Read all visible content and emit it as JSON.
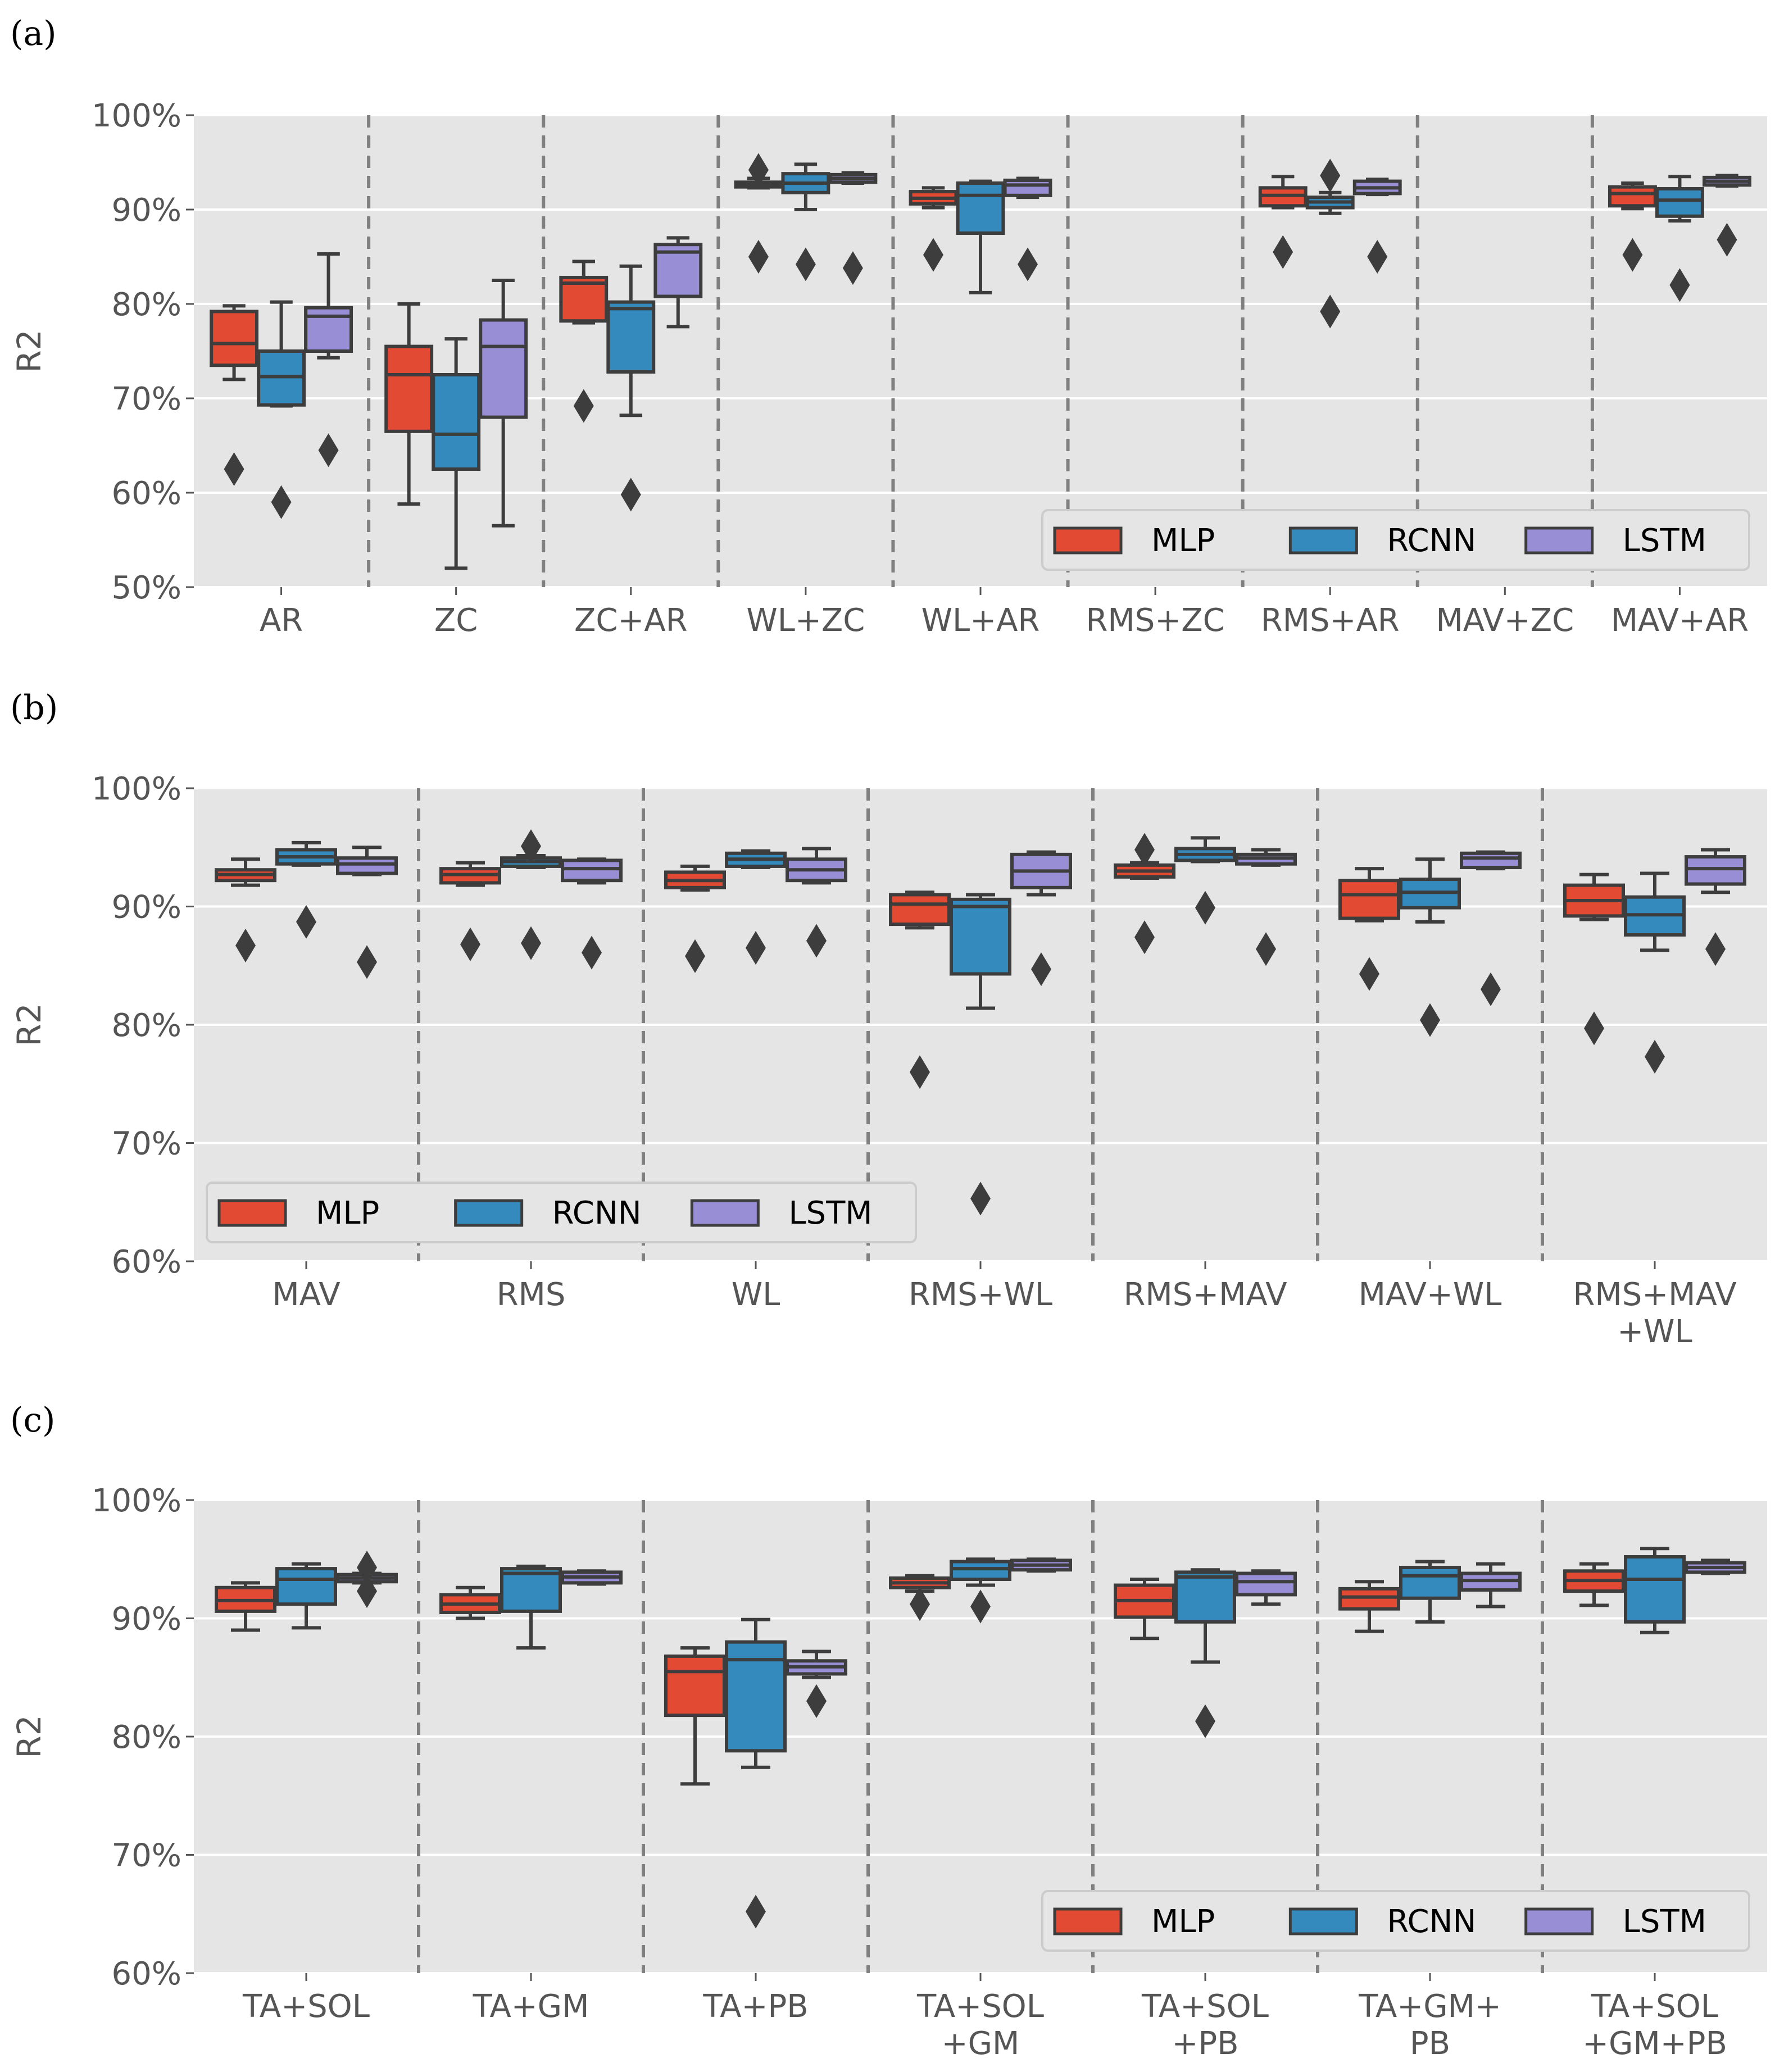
{
  "figure": {
    "colors": {
      "MLP": "#E24A33",
      "RCNN": "#348ABD",
      "LSTM": "#988ED5",
      "panel_bg": "#E5E5E5",
      "grid": "#FFFFFF",
      "box_edge": "#3d3d3d",
      "divider": "#808080"
    }
  },
  "chart_data": [
    {
      "type": "box",
      "panel_label": "(a)",
      "ylabel": "R2",
      "ylim": [
        50,
        100
      ],
      "yticks": [
        50,
        60,
        70,
        80,
        90,
        100
      ],
      "ytick_labels": [
        "50%",
        "60%",
        "70%",
        "80%",
        "90%",
        "100%"
      ],
      "legend": {
        "position": "lower-right",
        "entries": [
          "MLP",
          "RCNN",
          "LSTM"
        ]
      },
      "categories": [
        "AR",
        "ZC",
        "ZC+AR",
        "WL+ZC",
        "WL+AR",
        "RMS+ZC",
        "RMS+AR",
        "MAV+ZC",
        "MAV+AR"
      ],
      "series": [
        {
          "name": "MLP",
          "boxes": [
            {
              "wl": 72.0,
              "q1": 73.5,
              "med": 75.8,
              "q3": 79.2,
              "wh": 79.8,
              "fliers": [
                62.5
              ]
            },
            {
              "wl": 58.8,
              "q1": 66.5,
              "med": 72.5,
              "q3": 75.5,
              "wh": 80.0,
              "fliers": []
            },
            {
              "wl": 78.0,
              "q1": 78.2,
              "med": 82.2,
              "q3": 82.8,
              "wh": 84.5,
              "fliers": [
                69.2
              ]
            },
            {
              "wl": 92.3,
              "q1": 92.4,
              "med": 92.6,
              "q3": 92.9,
              "wh": 93.3,
              "fliers": [
                94.2,
                85.0
              ]
            },
            {
              "wl": 90.2,
              "q1": 90.6,
              "med": 91.2,
              "q3": 91.9,
              "wh": 92.3,
              "fliers": [
                85.2
              ]
            },
            null,
            {
              "wl": 90.2,
              "q1": 90.4,
              "med": 91.5,
              "q3": 92.3,
              "wh": 93.5,
              "fliers": [
                85.5
              ]
            },
            null,
            {
              "wl": 90.1,
              "q1": 90.4,
              "med": 91.7,
              "q3": 92.4,
              "wh": 92.8,
              "fliers": [
                85.2
              ]
            }
          ]
        },
        {
          "name": "RCNN",
          "boxes": [
            {
              "wl": 69.2,
              "q1": 69.3,
              "med": 72.3,
              "q3": 75.0,
              "wh": 80.2,
              "fliers": [
                59.0
              ]
            },
            {
              "wl": 52.0,
              "q1": 62.5,
              "med": 66.2,
              "q3": 72.5,
              "wh": 76.3,
              "fliers": []
            },
            {
              "wl": 68.2,
              "q1": 72.8,
              "med": 79.5,
              "q3": 80.2,
              "wh": 84.0,
              "fliers": [
                59.8
              ]
            },
            {
              "wl": 90.0,
              "q1": 91.8,
              "med": 92.8,
              "q3": 93.8,
              "wh": 94.8,
              "fliers": [
                84.2
              ]
            },
            {
              "wl": 81.2,
              "q1": 87.5,
              "med": 91.5,
              "q3": 92.8,
              "wh": 93.0,
              "fliers": []
            },
            null,
            {
              "wl": 89.6,
              "q1": 90.2,
              "med": 90.8,
              "q3": 91.3,
              "wh": 91.8,
              "fliers": [
                93.6,
                79.2
              ]
            },
            null,
            {
              "wl": 88.8,
              "q1": 89.3,
              "med": 91.0,
              "q3": 92.2,
              "wh": 93.5,
              "fliers": [
                82.0
              ]
            }
          ]
        },
        {
          "name": "LSTM",
          "boxes": [
            {
              "wl": 74.3,
              "q1": 75.0,
              "med": 78.7,
              "q3": 79.6,
              "wh": 85.3,
              "fliers": [
                64.5
              ]
            },
            {
              "wl": 56.5,
              "q1": 68.0,
              "med": 75.5,
              "q3": 78.3,
              "wh": 82.5,
              "fliers": []
            },
            {
              "wl": 77.6,
              "q1": 80.8,
              "med": 85.5,
              "q3": 86.3,
              "wh": 87.0,
              "fliers": []
            },
            {
              "wl": 92.8,
              "q1": 92.9,
              "med": 93.3,
              "q3": 93.7,
              "wh": 93.9,
              "fliers": [
                83.8
              ]
            },
            {
              "wl": 91.3,
              "q1": 91.5,
              "med": 92.6,
              "q3": 93.1,
              "wh": 93.3,
              "fliers": [
                84.2
              ]
            },
            null,
            {
              "wl": 91.6,
              "q1": 91.7,
              "med": 92.3,
              "q3": 93.0,
              "wh": 93.2,
              "fliers": [
                85.0
              ]
            },
            null,
            {
              "wl": 92.5,
              "q1": 92.6,
              "med": 93.0,
              "q3": 93.4,
              "wh": 93.6,
              "fliers": [
                86.8
              ]
            }
          ]
        }
      ]
    },
    {
      "type": "box",
      "panel_label": "(b)",
      "ylabel": "R2",
      "ylim": [
        60,
        100
      ],
      "yticks": [
        60,
        70,
        80,
        90,
        100
      ],
      "ytick_labels": [
        "60%",
        "70%",
        "80%",
        "90%",
        "100%"
      ],
      "legend": {
        "position": "lower-left",
        "entries": [
          "MLP",
          "RCNN",
          "LSTM"
        ]
      },
      "categories": [
        "MAV",
        "RMS",
        "WL",
        "RMS+WL",
        "RMS+MAV",
        "MAV+WL",
        "RMS+MAV\n+WL"
      ],
      "series": [
        {
          "name": "MLP",
          "boxes": [
            {
              "wl": 91.8,
              "q1": 92.2,
              "med": 92.7,
              "q3": 93.1,
              "wh": 94.0,
              "fliers": [
                86.7
              ]
            },
            {
              "wl": 91.8,
              "q1": 92.0,
              "med": 92.7,
              "q3": 93.2,
              "wh": 93.7,
              "fliers": [
                86.8
              ]
            },
            {
              "wl": 91.4,
              "q1": 91.6,
              "med": 92.2,
              "q3": 92.9,
              "wh": 93.4,
              "fliers": [
                85.8
              ]
            },
            {
              "wl": 88.2,
              "q1": 88.5,
              "med": 90.2,
              "q3": 91.0,
              "wh": 91.2,
              "fliers": [
                76.0
              ]
            },
            {
              "wl": 92.4,
              "q1": 92.5,
              "med": 93.0,
              "q3": 93.5,
              "wh": 93.7,
              "fliers": [
                94.8,
                87.4
              ]
            },
            {
              "wl": 88.8,
              "q1": 89.0,
              "med": 91.0,
              "q3": 92.2,
              "wh": 93.2,
              "fliers": [
                84.3
              ]
            },
            {
              "wl": 88.9,
              "q1": 89.2,
              "med": 90.5,
              "q3": 91.8,
              "wh": 92.7,
              "fliers": [
                79.7
              ]
            }
          ]
        },
        {
          "name": "RCNN",
          "boxes": [
            {
              "wl": 93.5,
              "q1": 93.6,
              "med": 94.2,
              "q3": 94.8,
              "wh": 95.4,
              "fliers": [
                88.7
              ]
            },
            {
              "wl": 93.3,
              "q1": 93.4,
              "med": 93.8,
              "q3": 94.1,
              "wh": 94.3,
              "fliers": [
                95.1,
                86.9
              ]
            },
            {
              "wl": 93.3,
              "q1": 93.4,
              "med": 94.0,
              "q3": 94.5,
              "wh": 94.7,
              "fliers": [
                86.5
              ]
            },
            {
              "wl": 81.4,
              "q1": 84.3,
              "med": 90.0,
              "q3": 90.6,
              "wh": 91.0,
              "fliers": [
                65.3
              ]
            },
            {
              "wl": 93.8,
              "q1": 93.9,
              "med": 94.4,
              "q3": 94.9,
              "wh": 95.8,
              "fliers": [
                89.9
              ]
            },
            {
              "wl": 88.7,
              "q1": 89.9,
              "med": 91.2,
              "q3": 92.3,
              "wh": 94.0,
              "fliers": [
                80.4
              ]
            },
            {
              "wl": 86.3,
              "q1": 87.6,
              "med": 89.3,
              "q3": 90.8,
              "wh": 92.8,
              "fliers": [
                77.3
              ]
            }
          ]
        },
        {
          "name": "LSTM",
          "boxes": [
            {
              "wl": 92.7,
              "q1": 92.8,
              "med": 93.6,
              "q3": 94.1,
              "wh": 95.0,
              "fliers": [
                85.3
              ]
            },
            {
              "wl": 92.0,
              "q1": 92.2,
              "med": 93.2,
              "q3": 93.9,
              "wh": 94.0,
              "fliers": [
                86.1
              ]
            },
            {
              "wl": 92.0,
              "q1": 92.2,
              "med": 93.1,
              "q3": 94.0,
              "wh": 94.9,
              "fliers": [
                87.1
              ]
            },
            {
              "wl": 91.0,
              "q1": 91.6,
              "med": 93.0,
              "q3": 94.4,
              "wh": 94.6,
              "fliers": [
                84.7
              ]
            },
            {
              "wl": 93.5,
              "q1": 93.6,
              "med": 94.1,
              "q3": 94.4,
              "wh": 94.8,
              "fliers": [
                86.4
              ]
            },
            {
              "wl": 93.2,
              "q1": 93.3,
              "med": 94.1,
              "q3": 94.5,
              "wh": 94.6,
              "fliers": [
                83.0
              ]
            },
            {
              "wl": 91.2,
              "q1": 91.9,
              "med": 93.2,
              "q3": 94.2,
              "wh": 94.8,
              "fliers": [
                86.4
              ]
            }
          ]
        }
      ]
    },
    {
      "type": "box",
      "panel_label": "(c)",
      "ylabel": "R2",
      "ylim": [
        60,
        100
      ],
      "yticks": [
        60,
        70,
        80,
        90,
        100
      ],
      "ytick_labels": [
        "60%",
        "70%",
        "80%",
        "90%",
        "100%"
      ],
      "legend": {
        "position": "lower-right",
        "entries": [
          "MLP",
          "RCNN",
          "LSTM"
        ]
      },
      "categories": [
        "TA+SOL",
        "TA+GM",
        "TA+PB",
        "TA+SOL\n+GM",
        "TA+SOL\n+PB",
        "TA+GM+\nPB",
        "TA+SOL\n+GM+PB"
      ],
      "series": [
        {
          "name": "MLP",
          "boxes": [
            {
              "wl": 89.0,
              "q1": 90.6,
              "med": 91.5,
              "q3": 92.6,
              "wh": 93.0,
              "fliers": []
            },
            {
              "wl": 90.0,
              "q1": 90.5,
              "med": 91.2,
              "q3": 92.0,
              "wh": 92.6,
              "fliers": []
            },
            {
              "wl": 76.0,
              "q1": 81.8,
              "med": 85.5,
              "q3": 86.8,
              "wh": 87.5,
              "fliers": []
            },
            {
              "wl": 92.3,
              "q1": 92.6,
              "med": 93.0,
              "q3": 93.4,
              "wh": 93.6,
              "fliers": [
                91.2
              ]
            },
            {
              "wl": 88.3,
              "q1": 90.1,
              "med": 91.5,
              "q3": 92.8,
              "wh": 93.3,
              "fliers": []
            },
            {
              "wl": 88.9,
              "q1": 90.8,
              "med": 91.8,
              "q3": 92.5,
              "wh": 93.1,
              "fliers": []
            },
            {
              "wl": 91.1,
              "q1": 92.3,
              "med": 93.2,
              "q3": 94.0,
              "wh": 94.6,
              "fliers": []
            }
          ]
        },
        {
          "name": "RCNN",
          "boxes": [
            {
              "wl": 89.2,
              "q1": 91.2,
              "med": 93.3,
              "q3": 94.2,
              "wh": 94.6,
              "fliers": []
            },
            {
              "wl": 87.5,
              "q1": 90.6,
              "med": 93.8,
              "q3": 94.2,
              "wh": 94.4,
              "fliers": []
            },
            {
              "wl": 77.4,
              "q1": 78.8,
              "med": 86.5,
              "q3": 88.0,
              "wh": 89.9,
              "fliers": [
                65.2
              ]
            },
            {
              "wl": 92.8,
              "q1": 93.3,
              "med": 94.2,
              "q3": 94.8,
              "wh": 95.0,
              "fliers": [
                91.0
              ]
            },
            {
              "wl": 86.3,
              "q1": 89.7,
              "med": 93.5,
              "q3": 93.9,
              "wh": 94.1,
              "fliers": [
                81.3
              ]
            },
            {
              "wl": 89.7,
              "q1": 91.7,
              "med": 93.6,
              "q3": 94.3,
              "wh": 94.8,
              "fliers": []
            },
            {
              "wl": 88.8,
              "q1": 89.7,
              "med": 93.3,
              "q3": 95.2,
              "wh": 95.9,
              "fliers": []
            }
          ]
        },
        {
          "name": "LSTM",
          "boxes": [
            {
              "wl": 93.0,
              "q1": 93.1,
              "med": 93.4,
              "q3": 93.7,
              "wh": 93.8,
              "fliers": [
                94.3,
                92.3
              ]
            },
            {
              "wl": 92.9,
              "q1": 93.0,
              "med": 93.5,
              "q3": 93.9,
              "wh": 94.0,
              "fliers": []
            },
            {
              "wl": 85.0,
              "q1": 85.3,
              "med": 85.9,
              "q3": 86.4,
              "wh": 87.2,
              "fliers": [
                83.0
              ]
            },
            {
              "wl": 94.0,
              "q1": 94.1,
              "med": 94.5,
              "q3": 94.9,
              "wh": 95.0,
              "fliers": []
            },
            {
              "wl": 91.2,
              "q1": 92.0,
              "med": 93.1,
              "q3": 93.8,
              "wh": 94.0,
              "fliers": []
            },
            {
              "wl": 91.0,
              "q1": 92.4,
              "med": 93.2,
              "q3": 93.8,
              "wh": 94.6,
              "fliers": []
            },
            {
              "wl": 93.8,
              "q1": 93.9,
              "med": 94.3,
              "q3": 94.7,
              "wh": 94.9,
              "fliers": []
            }
          ]
        }
      ]
    }
  ]
}
